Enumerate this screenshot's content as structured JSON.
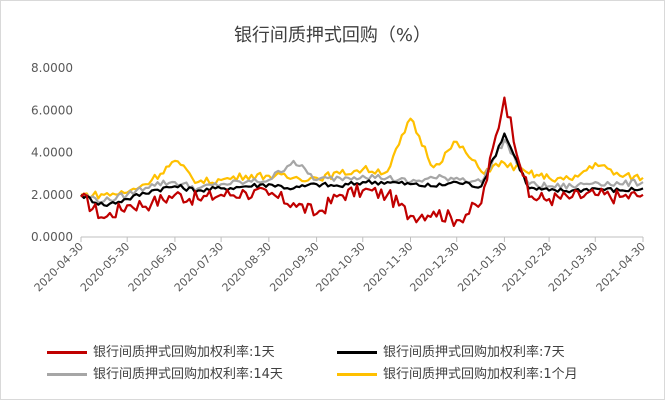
{
  "chart_data": {
    "type": "line",
    "title": "银行间质押式回购（%）",
    "xlabel": "",
    "ylabel": "",
    "ylim": [
      0,
      8
    ],
    "yticks": [
      "0.0000",
      "2.0000",
      "4.0000",
      "6.0000",
      "8.0000"
    ],
    "xticks": [
      "2020-04-30",
      "2020-05-30",
      "2020-06-30",
      "2020-07-30",
      "2020-08-30",
      "2020-09-30",
      "2020-10-30",
      "2020-11-30",
      "2020-12-30",
      "2021-01-30",
      "2021-02-28",
      "2021-03-30",
      "2021-04-30"
    ],
    "x": [
      "2020-04-30",
      "2020-05-15",
      "2020-05-30",
      "2020-06-15",
      "2020-06-30",
      "2020-07-15",
      "2020-07-30",
      "2020-08-15",
      "2020-08-30",
      "2020-09-15",
      "2020-09-30",
      "2020-10-15",
      "2020-10-30",
      "2020-11-15",
      "2020-11-30",
      "2020-12-15",
      "2020-12-30",
      "2021-01-15",
      "2021-01-30",
      "2021-02-15",
      "2021-02-28",
      "2021-03-15",
      "2021-03-30",
      "2021-04-15",
      "2021-04-30"
    ],
    "series": [
      {
        "name": "银行间质押式回购加权利率:1天",
        "color": "#c00000",
        "values": [
          1.9,
          0.9,
          1.5,
          1.6,
          2.0,
          1.8,
          2.0,
          2.1,
          2.0,
          1.6,
          1.1,
          2.0,
          2.2,
          2.0,
          1.0,
          1.2,
          0.8,
          1.6,
          6.6,
          1.9,
          1.8,
          1.9,
          2.0,
          1.9,
          2.0
        ]
      },
      {
        "name": "银行间质押式回购加权利率:7天",
        "color": "#000000",
        "values": [
          2.0,
          1.5,
          1.8,
          2.2,
          2.4,
          2.2,
          2.3,
          2.4,
          2.5,
          2.3,
          2.5,
          2.4,
          2.6,
          2.6,
          2.5,
          2.4,
          2.6,
          2.4,
          4.9,
          2.3,
          2.2,
          2.2,
          2.3,
          2.2,
          2.3
        ]
      },
      {
        "name": "银行间质押式回购加权利率:14天",
        "color": "#a6a6a6",
        "values": [
          2.0,
          1.7,
          2.0,
          2.5,
          2.6,
          2.3,
          2.5,
          2.6,
          2.7,
          3.6,
          2.7,
          2.8,
          2.9,
          2.8,
          2.6,
          2.8,
          2.8,
          2.6,
          4.6,
          2.5,
          2.4,
          2.4,
          2.6,
          2.5,
          2.6
        ]
      },
      {
        "name": "银行间质押式回购加权利率:1个月",
        "color": "#ffc000",
        "values": [
          2.0,
          2.0,
          2.1,
          2.7,
          3.6,
          2.6,
          2.7,
          2.9,
          2.9,
          2.8,
          2.8,
          3.0,
          3.2,
          3.1,
          5.6,
          3.3,
          4.5,
          3.1,
          3.5,
          3.0,
          2.8,
          2.7,
          3.5,
          2.9,
          2.8
        ]
      }
    ],
    "legend_position": "bottom",
    "grid": false
  }
}
